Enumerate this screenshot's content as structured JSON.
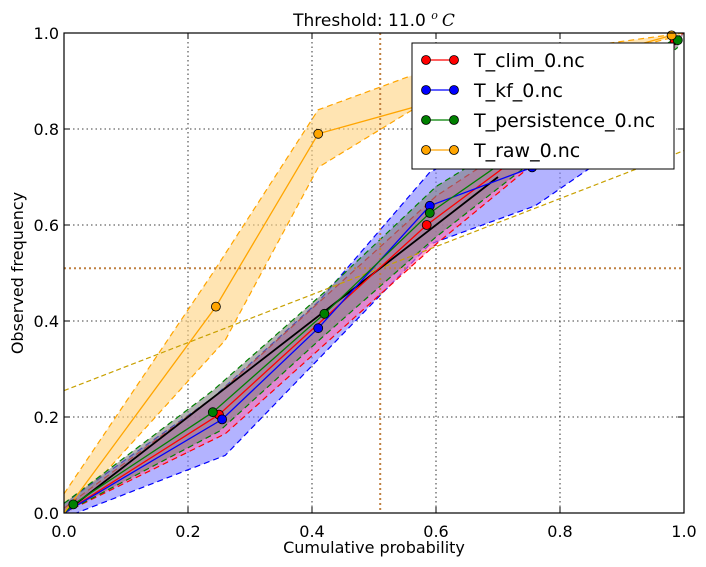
{
  "chart_data": {
    "type": "line",
    "title": "Threshold: 11.0 °C",
    "title_prefix": "Threshold: 11.0",
    "title_unit_sup": "o",
    "title_unit": "C",
    "xlabel": "Cumulative probability",
    "ylabel": "Observed frequency",
    "xlim": [
      0,
      1
    ],
    "ylim": [
      0,
      1
    ],
    "x_ticks": [
      0.0,
      0.2,
      0.4,
      0.6,
      0.8,
      1.0
    ],
    "y_ticks": [
      0.0,
      0.2,
      0.4,
      0.6,
      0.8,
      1.0
    ],
    "x_tick_labels": [
      "0.0",
      "0.2",
      "0.4",
      "0.6",
      "0.8",
      "1.0"
    ],
    "y_tick_labels": [
      "0.0",
      "0.2",
      "0.4",
      "0.6",
      "0.8",
      "1.0"
    ],
    "grid": true,
    "legend_position": "top-right",
    "reference_lines": {
      "diagonal": [
        [
          0,
          0
        ],
        [
          1,
          1
        ]
      ],
      "threshold_x": 0.51,
      "threshold_y": 0.51
    },
    "series": [
      {
        "name": "T_clim_0.nc",
        "color": "#ff0000",
        "points": [
          [
            0.0,
            0.0
          ],
          [
            0.25,
            0.205
          ],
          [
            0.585,
            0.6
          ],
          [
            0.985,
            0.985
          ]
        ],
        "band_upper": [
          [
            0.0,
            0.01
          ],
          [
            0.25,
            0.25
          ],
          [
            0.6,
            0.66
          ],
          [
            1.0,
            1.0
          ]
        ],
        "band_lower": [
          [
            0.0,
            0.0
          ],
          [
            0.26,
            0.165
          ],
          [
            0.6,
            0.56
          ],
          [
            0.985,
            0.97
          ]
        ],
        "band_fill": "#ff69b4"
      },
      {
        "name": "T_kf_0.nc",
        "color": "#0000ff",
        "points": [
          [
            0.0,
            0.0
          ],
          [
            0.255,
            0.195
          ],
          [
            0.41,
            0.385
          ],
          [
            0.59,
            0.64
          ],
          [
            0.755,
            0.72
          ]
        ],
        "band_upper": [
          [
            0.0,
            0.02
          ],
          [
            0.24,
            0.24
          ],
          [
            0.41,
            0.44
          ],
          [
            0.59,
            0.71
          ],
          [
            0.7,
            0.78
          ],
          [
            0.8,
            0.8
          ]
        ],
        "band_lower": [
          [
            0.0,
            -0.01
          ],
          [
            0.26,
            0.12
          ],
          [
            0.41,
            0.32
          ],
          [
            0.59,
            0.56
          ],
          [
            0.76,
            0.64
          ],
          [
            0.85,
            0.72
          ]
        ],
        "band_fill": "#8080ff"
      },
      {
        "name": "T_persistence_0.nc",
        "color": "#008000",
        "points": [
          [
            0.0,
            0.0
          ],
          [
            0.015,
            0.018
          ],
          [
            0.24,
            0.21
          ],
          [
            0.42,
            0.415
          ],
          [
            0.59,
            0.625
          ],
          [
            0.99,
            0.985
          ]
        ],
        "band_upper": [
          [
            0.0,
            0.02
          ],
          [
            0.24,
            0.255
          ],
          [
            0.42,
            0.46
          ],
          [
            0.6,
            0.68
          ],
          [
            1.0,
            1.0
          ]
        ],
        "band_lower": [
          [
            0.0,
            0.0
          ],
          [
            0.25,
            0.17
          ],
          [
            0.42,
            0.37
          ],
          [
            0.6,
            0.575
          ],
          [
            0.99,
            0.97
          ]
        ],
        "band_fill": "#808080"
      },
      {
        "name": "T_raw_0.nc",
        "color": "#ffa500",
        "points": [
          [
            0.0,
            0.0
          ],
          [
            0.245,
            0.43
          ],
          [
            0.41,
            0.79
          ],
          [
            0.98,
            0.995
          ]
        ],
        "band_upper": [
          [
            0.0,
            0.04
          ],
          [
            0.24,
            0.5
          ],
          [
            0.41,
            0.84
          ],
          [
            0.6,
            0.93
          ],
          [
            1.0,
            1.0
          ]
        ],
        "band_lower": [
          [
            0.0,
            -0.01
          ],
          [
            0.26,
            0.36
          ],
          [
            0.41,
            0.72
          ],
          [
            0.6,
            0.87
          ],
          [
            0.98,
            0.99
          ]
        ],
        "band_fill": "#ffd27f"
      }
    ],
    "fit_line": {
      "color": "#000000",
      "points": [
        [
          0.0,
          0.0
        ],
        [
          0.7,
          0.7
        ]
      ]
    },
    "skill_line": {
      "color": "#c8a000",
      "points": [
        [
          0.0,
          0.255
        ],
        [
          1.0,
          0.755
        ]
      ]
    }
  }
}
